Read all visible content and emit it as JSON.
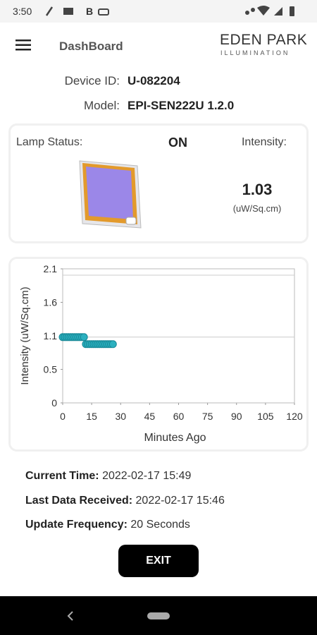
{
  "status_bar": {
    "time": "3:50"
  },
  "header": {
    "title": "DashBoard",
    "logo": "EDEN PARK",
    "logo_subtitle": "ILLUMINATION"
  },
  "device": {
    "id_label": "Device ID:",
    "id": "U-082204",
    "model_label": "Model:",
    "model": "EPI-SEN222U 1.2.0"
  },
  "lamp": {
    "status_label": "Lamp Status:",
    "status": "ON",
    "intensity_label": "Intensity:",
    "intensity": 1.03,
    "intensity_unit": "(uW/Sq.cm)"
  },
  "chart_data": {
    "type": "scatter",
    "x_label": "Minutes Ago",
    "y_label": "Intensity (uW/Sq.cm)",
    "xlim": [
      0,
      120
    ],
    "xticks": [
      0,
      15,
      30,
      45,
      60,
      75,
      90,
      105,
      120
    ],
    "ylim": [
      0,
      2.1
    ],
    "yticks": [
      0,
      {
        "value": 0.525,
        "label": "0.5"
      },
      {
        "value": 1.05,
        "label": "1.1"
      },
      {
        "value": 1.575,
        "label": "1.6"
      },
      2.1
    ],
    "hlines": [
      1.03,
      2.0
    ],
    "color": "#2bb0bf",
    "x": [
      0,
      1,
      2,
      3,
      4,
      5,
      6,
      7,
      8,
      9,
      10,
      11,
      12,
      13,
      14,
      15,
      16,
      17,
      18,
      19,
      20,
      21,
      22,
      23,
      24,
      25,
      26
    ],
    "values": [
      1.03,
      1.03,
      1.03,
      1.03,
      1.03,
      1.03,
      1.03,
      1.03,
      1.03,
      1.03,
      1.03,
      1.03,
      0.92,
      0.92,
      0.92,
      0.92,
      0.92,
      0.92,
      0.92,
      0.92,
      0.92,
      0.92,
      0.92,
      0.92,
      0.92,
      0.92,
      0.92
    ]
  },
  "info": {
    "current_time_label": "Current Time:",
    "current_time": "2022-02-17 15:49",
    "last_data_label": "Last Data Received:",
    "last_data": "2022-02-17 15:46",
    "frequency_label": "Update Frequency:",
    "frequency": "20 Seconds"
  },
  "exit_button": "EXIT"
}
